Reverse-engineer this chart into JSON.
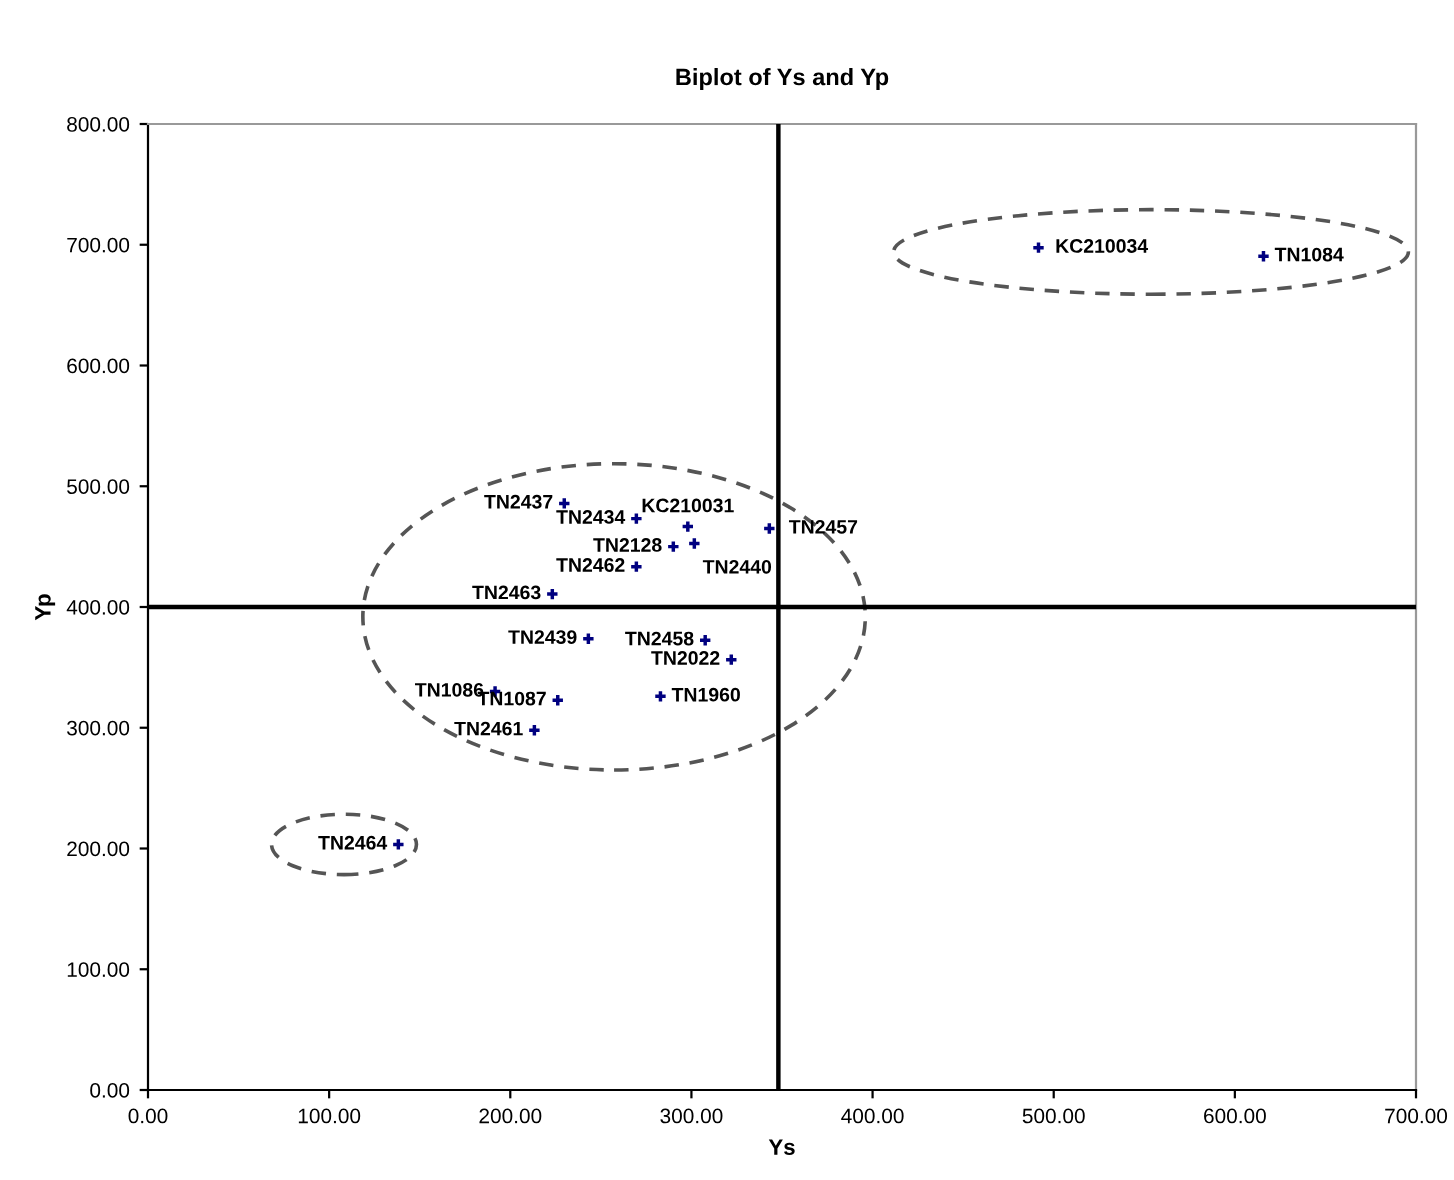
{
  "chart_data": {
    "type": "scatter",
    "title": "Biplot of Ys and Yp",
    "xlabel": "Ys",
    "ylabel": "Yp",
    "x": [
      229.8,
      269.6,
      298,
      343,
      290,
      301.6,
      269.6,
      223.2,
      243.1,
      307.6,
      322,
      191.6,
      226.2,
      282.9,
      213.3,
      138.2,
      491.6,
      615.8
    ],
    "series": [
      {
        "color": "#000080",
        "values": [
          485.8,
          473.2,
          466.6,
          465,
          450,
          452.6,
          433.4,
          410.7,
          373.7,
          372.5,
          356.4,
          330,
          322.8,
          326,
          297.9,
          203.4,
          697.6,
          690.5
        ]
      }
    ],
    "marker": "cross",
    "grid": false,
    "legend": false,
    "xlim": [
      0,
      700
    ],
    "xticks": [
      {
        "value": 0,
        "label": "0.00"
      },
      {
        "value": 100,
        "label": "100.00"
      },
      {
        "value": 200,
        "label": "200.00"
      },
      {
        "value": 300,
        "label": "300.00"
      },
      {
        "value": 400,
        "label": "400.00"
      },
      {
        "value": 500,
        "label": "500.00"
      },
      {
        "value": 600,
        "label": "600.00"
      },
      {
        "value": 700,
        "label": "700.00"
      }
    ],
    "ylim": [
      0,
      800
    ],
    "yticks": [
      {
        "value": 0,
        "label": "0.00"
      },
      {
        "value": 100,
        "label": "100.00"
      },
      {
        "value": 200,
        "label": "200.00"
      },
      {
        "value": 300,
        "label": "300.00"
      },
      {
        "value": 400,
        "label": "400.00"
      },
      {
        "value": 500,
        "label": "500.00"
      },
      {
        "value": 600,
        "label": "600.00"
      },
      {
        "value": 700,
        "label": "700.00"
      },
      {
        "value": 800,
        "label": "800.00"
      }
    ],
    "ref_lines": [
      {
        "axis": "x",
        "value": 348,
        "color": "#000000"
      },
      {
        "axis": "y",
        "value": 400,
        "color": "#000000"
      }
    ],
    "annotations": [
      {
        "text": "TN2437",
        "x": 229.8,
        "y": 485.8
      },
      {
        "text": "TN2434",
        "x": 269.6,
        "y": 473.2
      },
      {
        "text": "KC210031",
        "x": 298,
        "y": 466.6
      },
      {
        "text": "TN2457",
        "x": 343,
        "y": 465
      },
      {
        "text": "TN2128",
        "x": 290,
        "y": 450
      },
      {
        "text": "TN2440",
        "x": 301.6,
        "y": 452.6
      },
      {
        "text": "TN2462",
        "x": 269.6,
        "y": 433.4
      },
      {
        "text": "TN2463",
        "x": 223.2,
        "y": 410.7
      },
      {
        "text": "TN2439",
        "x": 243.1,
        "y": 373.7
      },
      {
        "text": "TN2458",
        "x": 307.6,
        "y": 372.5
      },
      {
        "text": "TN2022",
        "x": 322,
        "y": 356.4
      },
      {
        "text": "TN1086",
        "x": 191.6,
        "y": 330
      },
      {
        "text": "TN1087",
        "x": 226.2,
        "y": 322.8
      },
      {
        "text": "TN1960",
        "x": 282.9,
        "y": 326
      },
      {
        "text": "TN2461",
        "x": 213.3,
        "y": 297.9
      },
      {
        "text": "TN2464",
        "x": 138.2,
        "y": 203.4
      },
      {
        "text": "KC210034",
        "x": 491.6,
        "y": 697.6
      },
      {
        "text": "TN1084",
        "x": 615.8,
        "y": 690.5
      }
    ]
  }
}
